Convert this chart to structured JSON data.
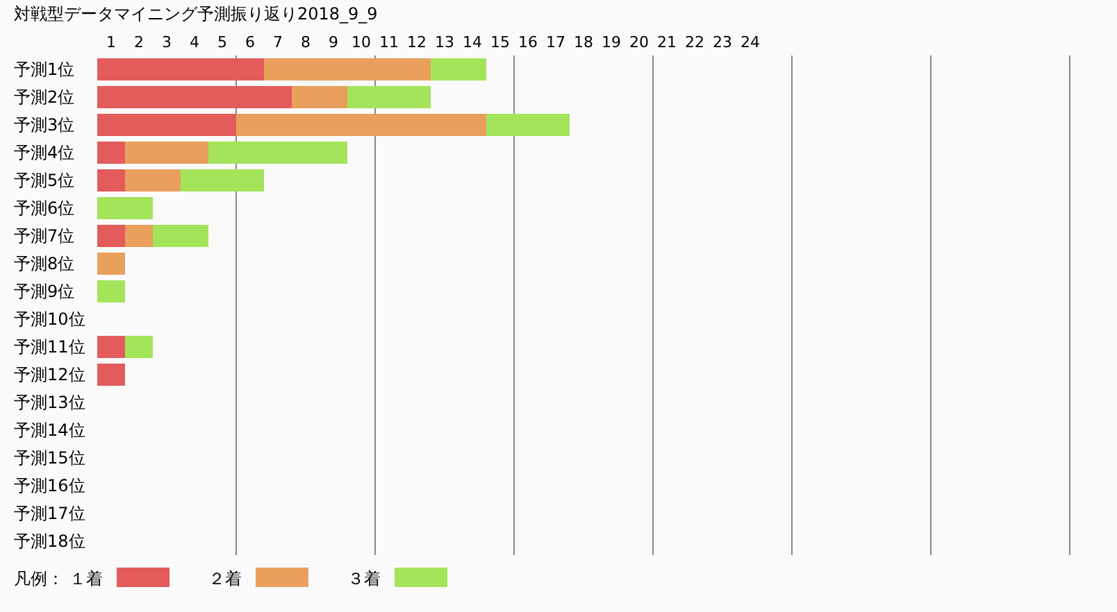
{
  "chart_data": {
    "type": "bar",
    "orientation": "horizontal",
    "stacked": true,
    "title": "対戦型データマイニング予測振り返り2018_9_9",
    "categories": [
      "予測1位",
      "予測2位",
      "予測3位",
      "予測4位",
      "予測5位",
      "予測6位",
      "予測7位",
      "予測8位",
      "予測9位",
      "予測10位",
      "予測11位",
      "予測12位",
      "予測13位",
      "予測14位",
      "予測15位",
      "予測16位",
      "予測17位",
      "予測18位"
    ],
    "series": [
      {
        "name": "１着",
        "color": "#e35b5b",
        "values": [
          6,
          7,
          5,
          1,
          1,
          0,
          1,
          0,
          0,
          0,
          1,
          1,
          0,
          0,
          0,
          0,
          0,
          0
        ]
      },
      {
        "name": "２着",
        "color": "#e8a05c",
        "values": [
          6,
          2,
          9,
          3,
          2,
          0,
          1,
          1,
          0,
          0,
          0,
          0,
          0,
          0,
          0,
          0,
          0,
          0
        ]
      },
      {
        "name": "３着",
        "color": "#a3e45a",
        "values": [
          2,
          3,
          3,
          5,
          3,
          2,
          2,
          0,
          1,
          0,
          1,
          0,
          0,
          0,
          0,
          0,
          0,
          0
        ]
      }
    ],
    "xlim": [
      0,
      35
    ],
    "xticks": [
      {
        "value": 0.5,
        "label": "1"
      },
      {
        "value": 1.5,
        "label": "2"
      },
      {
        "value": 2.5,
        "label": "3"
      },
      {
        "value": 3.5,
        "label": "4"
      },
      {
        "value": 4.5,
        "label": "5"
      },
      {
        "value": 5.5,
        "label": "6"
      },
      {
        "value": 6.5,
        "label": "7"
      },
      {
        "value": 7.5,
        "label": "8"
      },
      {
        "value": 8.5,
        "label": "9"
      },
      {
        "value": 9.5,
        "label": "10"
      },
      {
        "value": 10.5,
        "label": "11"
      },
      {
        "value": 11.5,
        "label": "12"
      },
      {
        "value": 12.5,
        "label": "13"
      },
      {
        "value": 13.5,
        "label": "14"
      },
      {
        "value": 14.5,
        "label": "15"
      },
      {
        "value": 15.5,
        "label": "16"
      },
      {
        "value": 16.5,
        "label": "17"
      },
      {
        "value": 17.5,
        "label": "18"
      },
      {
        "value": 18.5,
        "label": "19"
      },
      {
        "value": 19.5,
        "label": "20"
      },
      {
        "value": 20.5,
        "label": "21"
      },
      {
        "value": 21.5,
        "label": "22"
      },
      {
        "value": 22.5,
        "label": "23"
      },
      {
        "value": 23.5,
        "label": "24"
      },
      {
        "value": 5,
        "label": null
      },
      {
        "value": 10,
        "label": null
      },
      {
        "value": 15,
        "label": null
      },
      {
        "value": 20,
        "label": null
      },
      {
        "value": 25,
        "label": null
      },
      {
        "value": 30,
        "label": null
      },
      {
        "value": 35,
        "label": null
      }
    ],
    "grid": "x",
    "legend": "bottom",
    "legend_title": "凡例："
  }
}
